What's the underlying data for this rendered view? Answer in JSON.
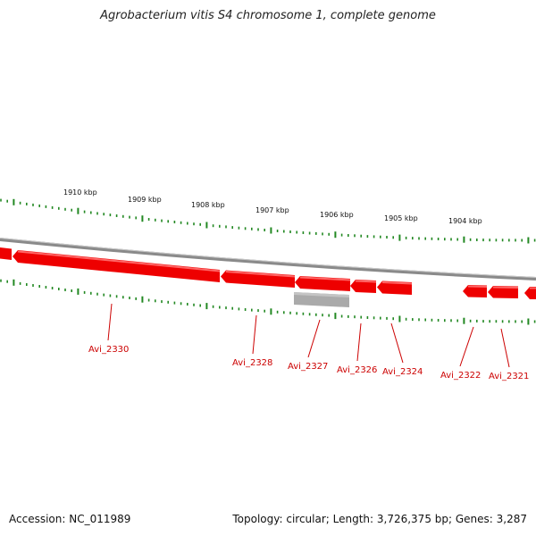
{
  "title": "Agrobacterium vitis S4 chromosome 1, complete genome",
  "footer": {
    "accession": "Accession: NC_011989",
    "stats": "Topology: circular; Length: 3,726,375 bp; Genes: 3,287"
  },
  "colors": {
    "gene": "#ee0000",
    "gene_highlight": "#ff5555",
    "gene_grey": "#aaaaaa",
    "backbone": "#888888",
    "tick": "#228822",
    "label": "#cc0000"
  },
  "scale_labels": [
    "1910 kbp",
    "1909 kbp",
    "1908 kbp",
    "1907 kbp",
    "1906 kbp",
    "1905 kbp",
    "1904 kbp"
  ],
  "gene_labels": [
    "Avi_2330",
    "Avi_2328",
    "Avi_2327",
    "Avi_2326",
    "Avi_2324",
    "Avi_2322",
    "Avi_2321"
  ]
}
